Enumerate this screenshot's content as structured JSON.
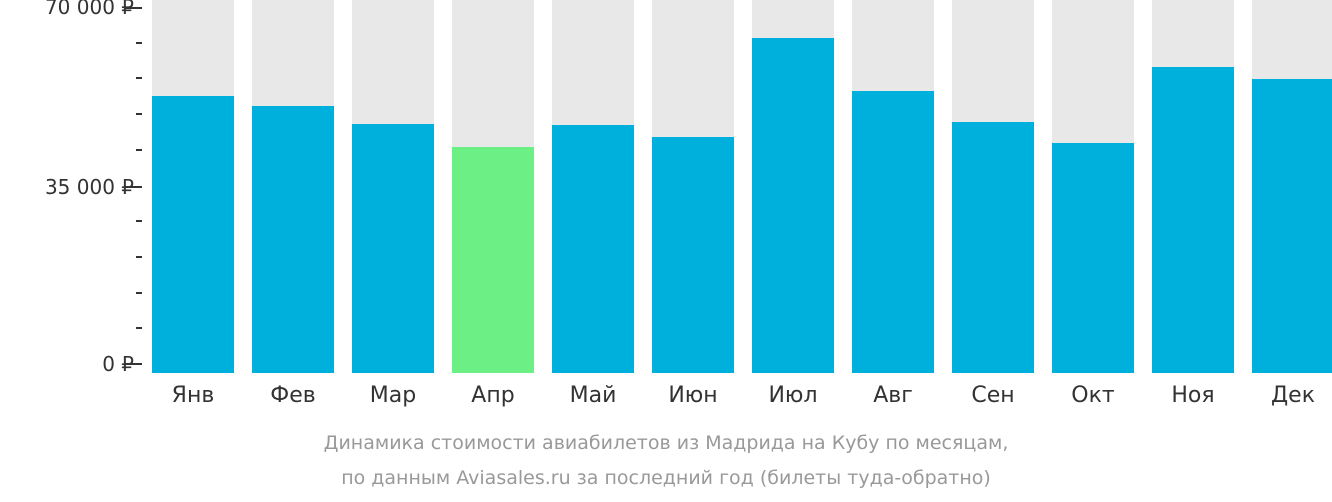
{
  "chart_data": {
    "type": "bar",
    "title": "Динамика стоимости авиабилетов из Мадрида на Кубу по месяцам, по данным Aviasales.ru за последний год (билеты туда-обратно)",
    "xlabel": "",
    "ylabel": "",
    "ylim": [
      0,
      70000
    ],
    "yticks": [
      "0 ₽",
      "35 000 ₽",
      "70 000 ₽"
    ],
    "grid": false,
    "categories": [
      "Янв",
      "Фев",
      "Мар",
      "Апр",
      "Май",
      "Июн",
      "Июл",
      "Авг",
      "Сен",
      "Окт",
      "Ноя",
      "Дек"
    ],
    "values": [
      52550,
      50590,
      47060,
      42550,
      46860,
      44510,
      63920,
      53530,
      47450,
      43330,
      58240,
      55880
    ],
    "highlight_index": 3,
    "colors": {
      "bar": "#00b0dc",
      "min_bar": "#6cf085",
      "background_column": "#e8e8e8"
    }
  },
  "axis": {
    "y_labels": [
      {
        "label": "70 000 ₽",
        "value": 70000
      },
      {
        "label": "35 000 ₽",
        "value": 35000
      },
      {
        "label": "0 ₽",
        "value": 0
      }
    ]
  },
  "caption": {
    "line1": "Динамика стоимости авиабилетов из Мадрида на Кубу по месяцам,",
    "line2": "по данным Aviasales.ru за последний год (билеты туда-обратно)"
  }
}
